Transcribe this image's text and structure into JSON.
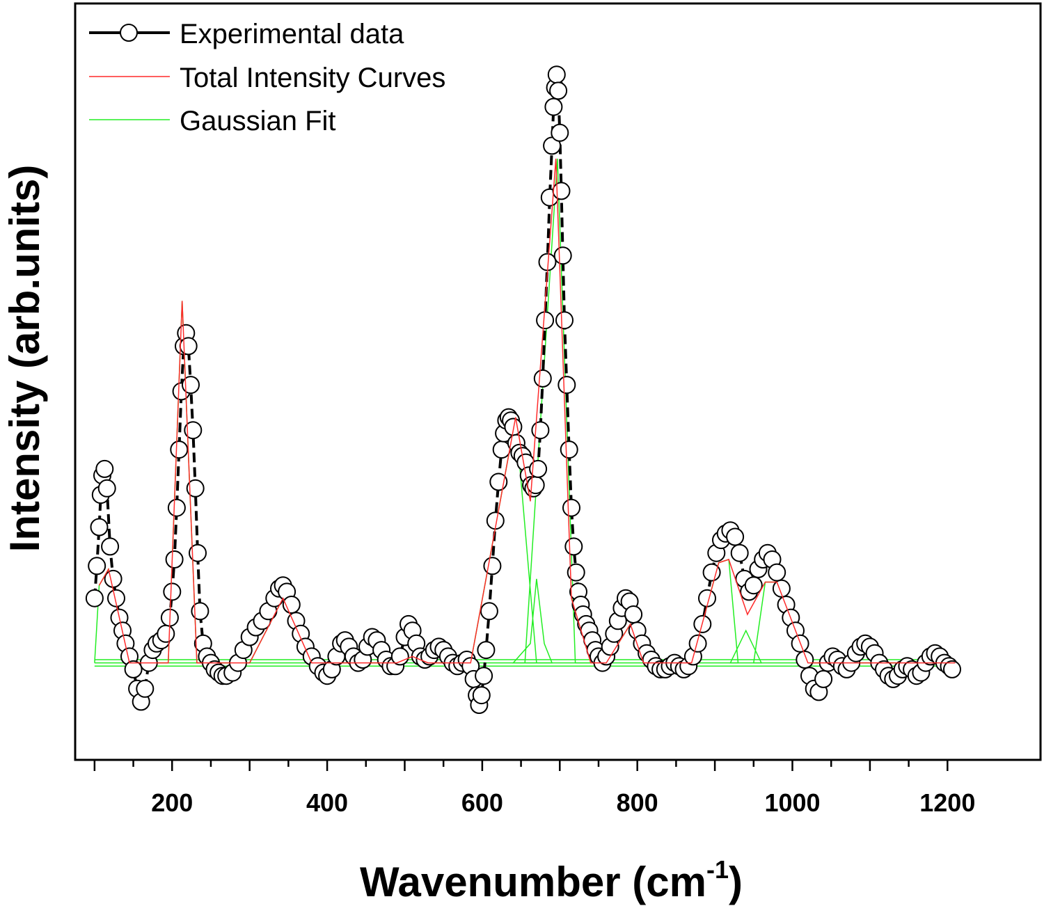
{
  "chart_data": {
    "type": "scatter",
    "xlabel": "Wavenumber (cm",
    "xlabel_sup": "-1",
    "xlabel_close": ")",
    "ylabel": "Intensity (arb.units)",
    "xlim": [
      75,
      1320
    ],
    "ylim": [
      -0.15,
      1.02
    ],
    "x_ticks": [
      200,
      400,
      600,
      800,
      1000,
      1200
    ],
    "x_tick_labels": [
      "200",
      "400",
      "600",
      "800",
      "1000",
      "1200"
    ],
    "y_ticks_shown": false,
    "legend_position": "top-left",
    "series": [
      {
        "name": "Experimental data",
        "style": "black dashed line with open circle markers",
        "color": "#000000",
        "points": [
          [
            100,
            0.1
          ],
          [
            103,
            0.15
          ],
          [
            106,
            0.21
          ],
          [
            108,
            0.26
          ],
          [
            110,
            0.29
          ],
          [
            113,
            0.3
          ],
          [
            116,
            0.27
          ],
          [
            120,
            0.18
          ],
          [
            124,
            0.13
          ],
          [
            128,
            0.1
          ],
          [
            132,
            0.07
          ],
          [
            136,
            0.05
          ],
          [
            140,
            0.03
          ],
          [
            145,
            0.01
          ],
          [
            150,
            -0.01
          ],
          [
            155,
            -0.04
          ],
          [
            160,
            -0.06
          ],
          [
            165,
            -0.04
          ],
          [
            170,
            0.0
          ],
          [
            175,
            0.02
          ],
          [
            180,
            0.03
          ],
          [
            186,
            0.035
          ],
          [
            192,
            0.045
          ],
          [
            197,
            0.07
          ],
          [
            200,
            0.11
          ],
          [
            203,
            0.16
          ],
          [
            206,
            0.24
          ],
          [
            209,
            0.33
          ],
          [
            212,
            0.42
          ],
          [
            215,
            0.49
          ],
          [
            218,
            0.51
          ],
          [
            221,
            0.49
          ],
          [
            224,
            0.43
          ],
          [
            227,
            0.36
          ],
          [
            230,
            0.27
          ],
          [
            233,
            0.17
          ],
          [
            236,
            0.08
          ],
          [
            240,
            0.03
          ],
          [
            245,
            0.01
          ],
          [
            250,
            0.0
          ],
          [
            255,
            -0.01
          ],
          [
            260,
            -0.015
          ],
          [
            265,
            -0.02
          ],
          [
            270,
            -0.02
          ],
          [
            278,
            -0.015
          ],
          [
            285,
            0.0
          ],
          [
            292,
            0.02
          ],
          [
            300,
            0.04
          ],
          [
            308,
            0.055
          ],
          [
            316,
            0.065
          ],
          [
            324,
            0.08
          ],
          [
            332,
            0.1
          ],
          [
            338,
            0.115
          ],
          [
            343,
            0.12
          ],
          [
            348,
            0.11
          ],
          [
            354,
            0.09
          ],
          [
            360,
            0.065
          ],
          [
            366,
            0.045
          ],
          [
            372,
            0.025
          ],
          [
            380,
            0.01
          ],
          [
            388,
            -0.005
          ],
          [
            395,
            -0.015
          ],
          [
            400,
            -0.02
          ],
          [
            406,
            -0.01
          ],
          [
            412,
            0.01
          ],
          [
            418,
            0.03
          ],
          [
            423,
            0.035
          ],
          [
            428,
            0.025
          ],
          [
            434,
            0.01
          ],
          [
            440,
            0.0
          ],
          [
            446,
            0.005
          ],
          [
            452,
            0.025
          ],
          [
            458,
            0.04
          ],
          [
            464,
            0.035
          ],
          [
            470,
            0.02
          ],
          [
            476,
            0.005
          ],
          [
            482,
            -0.005
          ],
          [
            488,
            -0.005
          ],
          [
            494,
            0.01
          ],
          [
            500,
            0.04
          ],
          [
            505,
            0.06
          ],
          [
            510,
            0.05
          ],
          [
            515,
            0.03
          ],
          [
            520,
            0.01
          ],
          [
            526,
            0.005
          ],
          [
            532,
            0.01
          ],
          [
            538,
            0.02
          ],
          [
            544,
            0.025
          ],
          [
            550,
            0.02
          ],
          [
            556,
            0.01
          ],
          [
            562,
            0.0
          ],
          [
            568,
            -0.005
          ],
          [
            574,
            0.0
          ],
          [
            580,
            0.005
          ],
          [
            585,
            -0.005
          ],
          [
            589,
            -0.025
          ],
          [
            593,
            -0.05
          ],
          [
            596,
            -0.065
          ],
          [
            599,
            -0.05
          ],
          [
            602,
            -0.02
          ],
          [
            605,
            0.02
          ],
          [
            609,
            0.08
          ],
          [
            613,
            0.15
          ],
          [
            617,
            0.22
          ],
          [
            621,
            0.28
          ],
          [
            625,
            0.33
          ],
          [
            628,
            0.355
          ],
          [
            631,
            0.375
          ],
          [
            634,
            0.38
          ],
          [
            637,
            0.375
          ],
          [
            640,
            0.365
          ],
          [
            644,
            0.34
          ],
          [
            648,
            0.325
          ],
          [
            652,
            0.32
          ],
          [
            656,
            0.31
          ],
          [
            660,
            0.29
          ],
          [
            663,
            0.275
          ],
          [
            666,
            0.27
          ],
          [
            669,
            0.275
          ],
          [
            672,
            0.3
          ],
          [
            675,
            0.36
          ],
          [
            678,
            0.44
          ],
          [
            681,
            0.53
          ],
          [
            684,
            0.62
          ],
          [
            687,
            0.72
          ],
          [
            690,
            0.8
          ],
          [
            692,
            0.86
          ],
          [
            694,
            0.89
          ],
          [
            696,
            0.91
          ],
          [
            698,
            0.885
          ],
          [
            700,
            0.82
          ],
          [
            702,
            0.73
          ],
          [
            704,
            0.63
          ],
          [
            706,
            0.53
          ],
          [
            709,
            0.43
          ],
          [
            712,
            0.33
          ],
          [
            715,
            0.24
          ],
          [
            718,
            0.18
          ],
          [
            721,
            0.14
          ],
          [
            724,
            0.11
          ],
          [
            727,
            0.09
          ],
          [
            730,
            0.075
          ],
          [
            734,
            0.06
          ],
          [
            738,
            0.05
          ],
          [
            742,
            0.035
          ],
          [
            746,
            0.02
          ],
          [
            750,
            0.01
          ],
          [
            755,
            0.0
          ],
          [
            760,
            0.01
          ],
          [
            765,
            0.025
          ],
          [
            770,
            0.045
          ],
          [
            775,
            0.065
          ],
          [
            780,
            0.085
          ],
          [
            785,
            0.1
          ],
          [
            790,
            0.095
          ],
          [
            795,
            0.075
          ],
          [
            800,
            0.05
          ],
          [
            806,
            0.03
          ],
          [
            812,
            0.015
          ],
          [
            818,
            0.005
          ],
          [
            824,
            -0.005
          ],
          [
            830,
            -0.01
          ],
          [
            836,
            -0.01
          ],
          [
            842,
            -0.005
          ],
          [
            848,
            0.0
          ],
          [
            854,
            -0.005
          ],
          [
            860,
            -0.01
          ],
          [
            866,
            -0.005
          ],
          [
            872,
            0.01
          ],
          [
            878,
            0.03
          ],
          [
            884,
            0.06
          ],
          [
            890,
            0.1
          ],
          [
            896,
            0.14
          ],
          [
            902,
            0.17
          ],
          [
            908,
            0.19
          ],
          [
            914,
            0.2
          ],
          [
            920,
            0.205
          ],
          [
            926,
            0.195
          ],
          [
            932,
            0.17
          ],
          [
            938,
            0.13
          ],
          [
            944,
            0.11
          ],
          [
            950,
            0.12
          ],
          [
            956,
            0.145
          ],
          [
            962,
            0.16
          ],
          [
            968,
            0.17
          ],
          [
            974,
            0.16
          ],
          [
            980,
            0.14
          ],
          [
            986,
            0.115
          ],
          [
            992,
            0.09
          ],
          [
            998,
            0.07
          ],
          [
            1004,
            0.05
          ],
          [
            1010,
            0.03
          ],
          [
            1016,
            0.005
          ],
          [
            1022,
            -0.02
          ],
          [
            1028,
            -0.04
          ],
          [
            1034,
            -0.045
          ],
          [
            1040,
            -0.025
          ],
          [
            1046,
            0.0
          ],
          [
            1052,
            0.01
          ],
          [
            1058,
            0.005
          ],
          [
            1064,
            -0.005
          ],
          [
            1070,
            -0.01
          ],
          [
            1076,
            0.0
          ],
          [
            1082,
            0.015
          ],
          [
            1088,
            0.025
          ],
          [
            1094,
            0.03
          ],
          [
            1100,
            0.025
          ],
          [
            1106,
            0.015
          ],
          [
            1112,
            0.0
          ],
          [
            1118,
            -0.01
          ],
          [
            1124,
            -0.02
          ],
          [
            1130,
            -0.025
          ],
          [
            1136,
            -0.02
          ],
          [
            1142,
            -0.01
          ],
          [
            1148,
            -0.005
          ],
          [
            1154,
            -0.01
          ],
          [
            1160,
            -0.02
          ],
          [
            1166,
            -0.015
          ],
          [
            1172,
            0.0
          ],
          [
            1178,
            0.01
          ],
          [
            1184,
            0.015
          ],
          [
            1190,
            0.01
          ],
          [
            1196,
            0.0
          ],
          [
            1202,
            -0.005
          ],
          [
            1206,
            -0.01
          ]
        ]
      },
      {
        "name": "Total Intensity Curves",
        "style": "thin red line",
        "color": "#ff2a2a",
        "points": [
          [
            106,
            0.12
          ],
          [
            118,
            0.145
          ],
          [
            145,
            0.0
          ],
          [
            195,
            0.0
          ],
          [
            213,
            0.56
          ],
          [
            232,
            0.0
          ],
          [
            300,
            0.0
          ],
          [
            343,
            0.1
          ],
          [
            380,
            0.0
          ],
          [
            490,
            0.0
          ],
          [
            510,
            0.01
          ],
          [
            530,
            0.0
          ],
          [
            585,
            0.0
          ],
          [
            643,
            0.38
          ],
          [
            662,
            0.25
          ],
          [
            695,
            0.78
          ],
          [
            715,
            0.1
          ],
          [
            740,
            0.0
          ],
          [
            760,
            0.0
          ],
          [
            791,
            0.06
          ],
          [
            808,
            0.0
          ],
          [
            870,
            0.0
          ],
          [
            905,
            0.155
          ],
          [
            918,
            0.16
          ],
          [
            942,
            0.075
          ],
          [
            965,
            0.125
          ],
          [
            980,
            0.125
          ],
          [
            1020,
            0.0
          ],
          [
            1210,
            0.0
          ]
        ]
      },
      {
        "name": "Gaussian Fit",
        "style": "thin green lines (individual peaks)",
        "color": "#22ee22",
        "points": [
          [
            100,
            0.0
          ],
          [
            106,
            0.12
          ],
          [
            118,
            0.145
          ],
          [
            145,
            0.0
          ],
          [
            195,
            0.0
          ],
          [
            213,
            0.56
          ],
          [
            232,
            0.0
          ],
          [
            300,
            0.0
          ],
          [
            343,
            0.1
          ],
          [
            380,
            0.0
          ],
          [
            490,
            0.0
          ],
          [
            510,
            0.01
          ],
          [
            530,
            0.0
          ],
          [
            585,
            0.0
          ],
          [
            643,
            0.38
          ],
          [
            670,
            0.0
          ],
          [
            640,
            0.0
          ],
          [
            662,
            0.03
          ],
          [
            670,
            0.13
          ],
          [
            680,
            0.03
          ],
          [
            690,
            0.0
          ],
          [
            655,
            0.0
          ],
          [
            697,
            0.78
          ],
          [
            720,
            0.0
          ],
          [
            740,
            0.0
          ],
          [
            760,
            0.0
          ],
          [
            791,
            0.06
          ],
          [
            808,
            0.0
          ],
          [
            870,
            0.0
          ],
          [
            905,
            0.155
          ],
          [
            918,
            0.16
          ],
          [
            930,
            0.0
          ],
          [
            920,
            0.0
          ],
          [
            940,
            0.05
          ],
          [
            960,
            0.0
          ],
          [
            950,
            0.0
          ],
          [
            965,
            0.125
          ],
          [
            980,
            0.125
          ],
          [
            1020,
            0.0
          ],
          [
            1210,
            0.0
          ]
        ]
      }
    ]
  }
}
